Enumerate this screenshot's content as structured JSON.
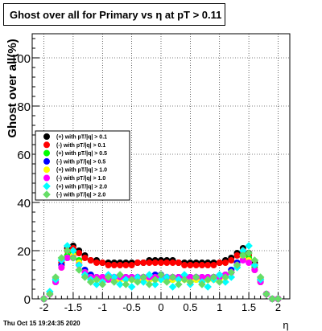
{
  "chart_data": {
    "type": "scatter",
    "title": "Ghost over all for Primary vs  η at pT > 0.11",
    "xlabel": "η",
    "ylabel": "Ghost over all(%)",
    "xlim": [
      -2.2,
      2.2
    ],
    "ylim": [
      0,
      110
    ],
    "x_ticks": [
      "-2",
      "-1.5",
      "-1",
      "-0.5",
      "0",
      "0.5",
      "1",
      "1.5",
      "2"
    ],
    "x_tick_values": [
      -2,
      -1.5,
      -1,
      -0.5,
      0,
      0.5,
      1,
      1.5,
      2
    ],
    "y_ticks": [
      "0",
      "20",
      "40",
      "60",
      "80",
      "100"
    ],
    "y_tick_values": [
      0,
      20,
      40,
      60,
      80,
      100
    ],
    "grid": true,
    "legend_position": "center-left",
    "timestamp": "Thu Oct 15 19:24:35 2020",
    "x": [
      -2.0,
      -1.9,
      -1.8,
      -1.7,
      -1.6,
      -1.5,
      -1.4,
      -1.3,
      -1.2,
      -1.1,
      -1.0,
      -0.9,
      -0.8,
      -0.7,
      -0.6,
      -0.5,
      -0.4,
      -0.3,
      -0.2,
      -0.1,
      0.0,
      0.1,
      0.2,
      0.3,
      0.4,
      0.5,
      0.6,
      0.7,
      0.8,
      0.9,
      1.0,
      1.1,
      1.2,
      1.3,
      1.4,
      1.5,
      1.6,
      1.7,
      1.8,
      1.9,
      2.0
    ],
    "series": [
      {
        "name": "(+) with pT/|q| > 0.1",
        "color": "#000000",
        "marker": "circle",
        "values": [
          0,
          2,
          8,
          15,
          21,
          22,
          20,
          18,
          16,
          16,
          15,
          15,
          15,
          15,
          15,
          15,
          15,
          15,
          16,
          16,
          16,
          16,
          16,
          15,
          15,
          15,
          15,
          15,
          15,
          15,
          15,
          16,
          17,
          19,
          21,
          19,
          15,
          8,
          2,
          0,
          0
        ]
      },
      {
        "name": "(-) with pT/|q| > 0.1",
        "color": "#ff0000",
        "marker": "circle",
        "values": [
          0,
          2,
          8,
          15,
          20,
          21,
          19,
          17,
          16,
          15,
          15,
          14,
          14,
          14,
          14,
          14,
          15,
          15,
          15,
          15,
          15,
          15,
          15,
          15,
          14,
          14,
          14,
          14,
          14,
          14,
          15,
          15,
          16,
          18,
          20,
          18,
          14,
          8,
          2,
          0,
          0
        ]
      },
      {
        "name": "(+) with pT/|q| > 0.5",
        "color": "#00ff00",
        "marker": "circle",
        "values": [
          0,
          2,
          7,
          14,
          18,
          19,
          16,
          12,
          10,
          9,
          8,
          8,
          8,
          8,
          9,
          9,
          9,
          8,
          8,
          9,
          9,
          8,
          8,
          9,
          9,
          9,
          8,
          8,
          8,
          9,
          9,
          10,
          12,
          15,
          18,
          17,
          13,
          7,
          2,
          0,
          0
        ]
      },
      {
        "name": "(-) with pT/|q| > 0.5",
        "color": "#0000ff",
        "marker": "circle",
        "values": [
          0,
          2,
          7,
          14,
          17,
          18,
          15,
          12,
          10,
          9,
          9,
          9,
          9,
          9,
          9,
          9,
          9,
          9,
          9,
          10,
          10,
          9,
          9,
          9,
          9,
          9,
          9,
          9,
          9,
          9,
          9,
          10,
          12,
          15,
          17,
          16,
          12,
          7,
          2,
          0,
          0
        ]
      },
      {
        "name": "(+) with pT/|q| > 1.0",
        "color": "#ffff00",
        "marker": "circle",
        "values": [
          0,
          2,
          7,
          13,
          17,
          18,
          15,
          11,
          9,
          8,
          8,
          8,
          8,
          8,
          8,
          8,
          8,
          8,
          8,
          8,
          8,
          8,
          8,
          8,
          8,
          8,
          8,
          8,
          8,
          8,
          8,
          9,
          11,
          14,
          17,
          16,
          12,
          7,
          2,
          0,
          0
        ]
      },
      {
        "name": "(-) with pT/|q| > 1.0",
        "color": "#ff00ff",
        "marker": "circle",
        "values": [
          0,
          2,
          7,
          13,
          17,
          17,
          14,
          11,
          9,
          9,
          9,
          8,
          9,
          9,
          9,
          9,
          9,
          9,
          9,
          9,
          9,
          9,
          9,
          9,
          9,
          9,
          9,
          9,
          9,
          9,
          9,
          10,
          11,
          14,
          16,
          15,
          12,
          7,
          2,
          0,
          0
        ]
      },
      {
        "name": "(+) with pT/|q| > 2.0",
        "color": "#00ffff",
        "marker": "diamond",
        "values": [
          0,
          3,
          8,
          16,
          22,
          20,
          14,
          10,
          8,
          6,
          7,
          10,
          9,
          6,
          8,
          5,
          9,
          7,
          10,
          6,
          8,
          9,
          5,
          8,
          10,
          6,
          9,
          7,
          5,
          8,
          10,
          7,
          9,
          13,
          20,
          22,
          14,
          8,
          2,
          0,
          0
        ]
      },
      {
        "name": "(-) with pT/|q| > 2.0",
        "color": "#66dd66",
        "marker": "diamond",
        "values": [
          0,
          2,
          9,
          17,
          20,
          17,
          12,
          9,
          7,
          8,
          6,
          9,
          7,
          10,
          6,
          8,
          7,
          9,
          6,
          8,
          10,
          7,
          9,
          6,
          8,
          7,
          9,
          6,
          8,
          9,
          7,
          9,
          11,
          14,
          18,
          19,
          16,
          9,
          2,
          0,
          0
        ]
      }
    ]
  },
  "title_text": "Ghost over all for Primary vs  η at pT > 0.11",
  "timestamp_text": "Thu Oct 15 19:24:35 2020"
}
